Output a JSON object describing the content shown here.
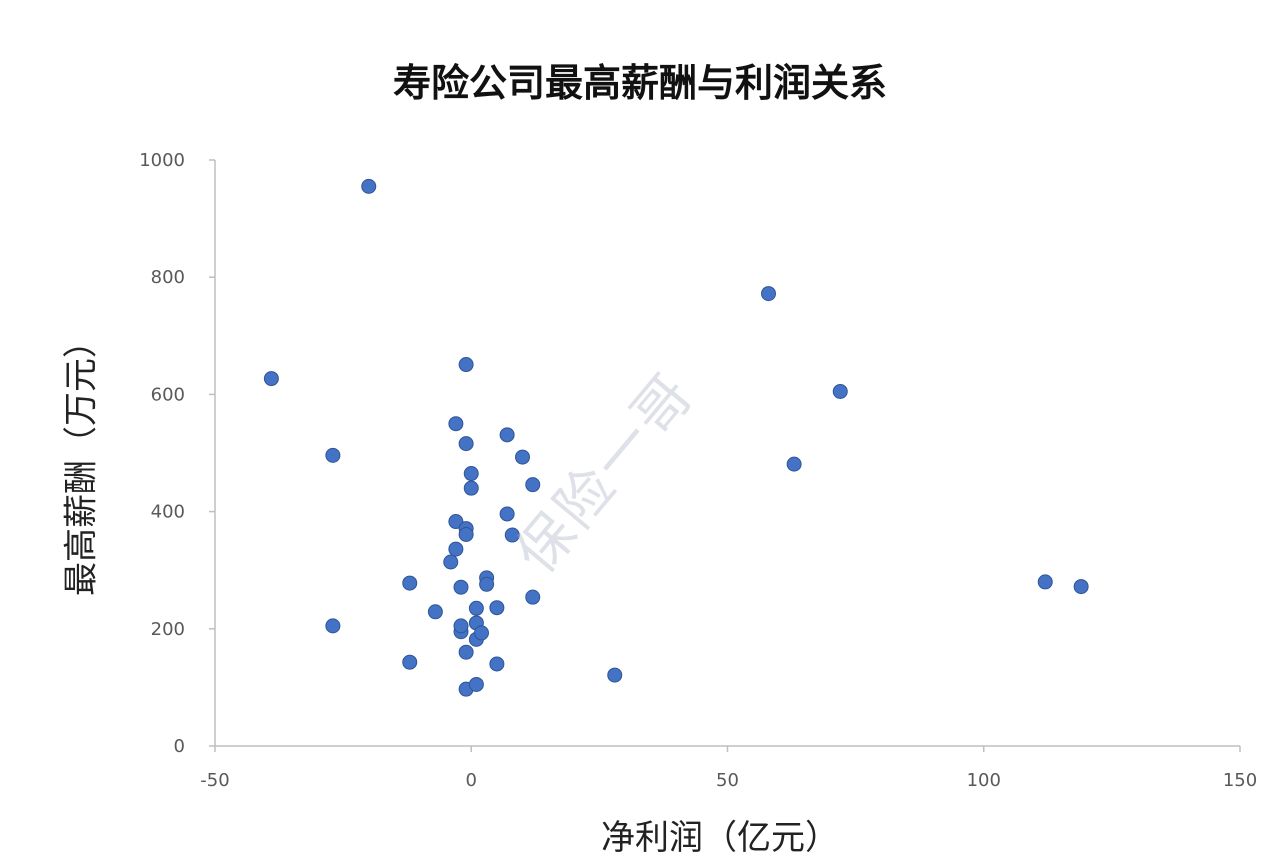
{
  "chart_data": {
    "type": "scatter",
    "title": "寿险公司最高薪酬与利润关系",
    "xlabel": "净利润（亿元）",
    "ylabel": "最高薪酬（万元）",
    "xlim": [
      -50,
      150
    ],
    "ylim": [
      0,
      1000
    ],
    "xticks": [
      "-50",
      "0",
      "50",
      "100",
      "150"
    ],
    "yticks": [
      "0",
      "200",
      "400",
      "600",
      "800",
      "1000"
    ],
    "grid": false,
    "marker_color": "#4472C4",
    "series": [
      {
        "points": [
          [
            -20,
            955
          ],
          [
            -39,
            627
          ],
          [
            -27,
            496
          ],
          [
            -27,
            205
          ],
          [
            -12,
            278
          ],
          [
            -12,
            143
          ],
          [
            -7,
            229
          ],
          [
            -4,
            314
          ],
          [
            -3,
            550
          ],
          [
            -3,
            383
          ],
          [
            -3,
            336
          ],
          [
            -2,
            271
          ],
          [
            -2,
            195
          ],
          [
            -1,
            651
          ],
          [
            -1,
            516
          ],
          [
            -1,
            371
          ],
          [
            -1,
            361
          ],
          [
            -1,
            160
          ],
          [
            -1,
            97
          ],
          [
            -2,
            205
          ],
          [
            0,
            465
          ],
          [
            0,
            440
          ],
          [
            1,
            235
          ],
          [
            1,
            210
          ],
          [
            1,
            182
          ],
          [
            1,
            105
          ],
          [
            2,
            193
          ],
          [
            3,
            287
          ],
          [
            3,
            276
          ],
          [
            5,
            236
          ],
          [
            5,
            140
          ],
          [
            7,
            531
          ],
          [
            7,
            396
          ],
          [
            8,
            360
          ],
          [
            10,
            493
          ],
          [
            12,
            446
          ],
          [
            12,
            254
          ],
          [
            28,
            121
          ],
          [
            58,
            772
          ],
          [
            63,
            481
          ],
          [
            72,
            605
          ],
          [
            112,
            280
          ],
          [
            119,
            272
          ]
        ]
      }
    ],
    "watermark": "保险一哥"
  }
}
